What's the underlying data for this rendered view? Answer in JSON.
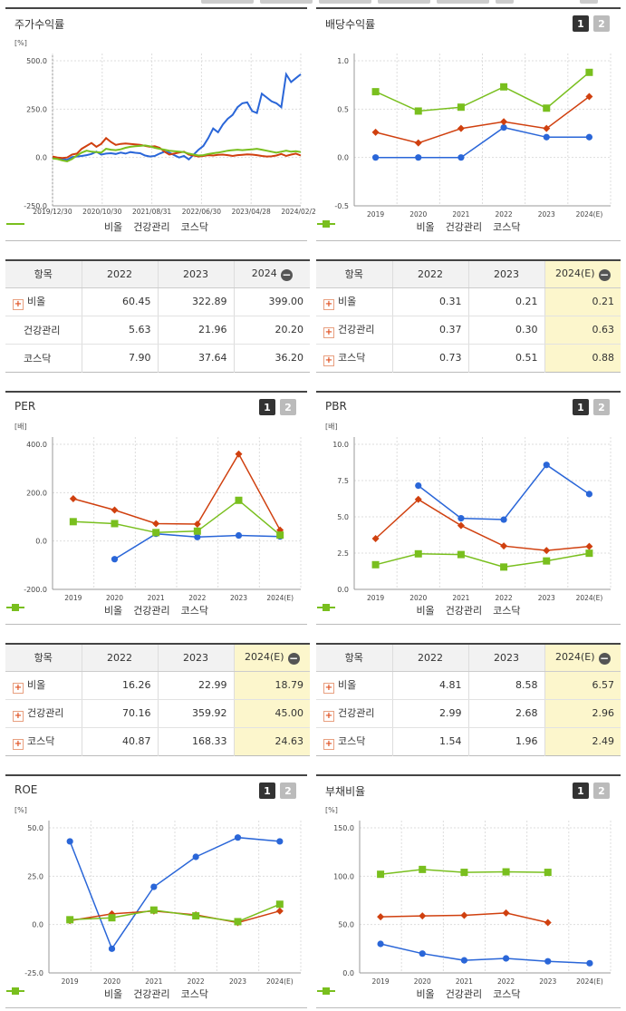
{
  "colors": {
    "series1": "#2a66d8",
    "series2": "#d0400f",
    "series3": "#79bf1e",
    "grid": "#dddddd",
    "axis": "#999999"
  },
  "legend": [
    "비올",
    "건강관리",
    "코스닥"
  ],
  "panels": {
    "stock_return": {
      "title": "주가수익률",
      "unit": "[%]"
    },
    "dividend": {
      "title": "배당수익률",
      "btn1": "1",
      "btn2": "2"
    },
    "per": {
      "title": "PER",
      "unit": "[배]",
      "btn1": "1",
      "btn2": "2"
    },
    "pbr": {
      "title": "PBR",
      "unit": "[배]",
      "btn1": "1",
      "btn2": "2"
    },
    "roe": {
      "title": "ROE",
      "unit": "[%]",
      "btn1": "1",
      "btn2": "2"
    },
    "debt": {
      "title": "부채비율",
      "unit": "[%]",
      "btn1": "1",
      "btn2": "2"
    }
  },
  "tables": {
    "stock_return": {
      "headers": [
        "항목",
        "2022",
        "2023",
        "2024"
      ],
      "rows": [
        [
          "비올",
          "60.45",
          "322.89",
          "399.00"
        ],
        [
          "건강관리",
          "5.63",
          "21.96",
          "20.20"
        ],
        [
          "코스닥",
          "7.90",
          "37.64",
          "36.20"
        ]
      ]
    },
    "dividend": {
      "headers": [
        "항목",
        "2022",
        "2023",
        "2024(E)"
      ],
      "rows": [
        [
          "비올",
          "0.31",
          "0.21",
          "0.21"
        ],
        [
          "건강관리",
          "0.37",
          "0.30",
          "0.63"
        ],
        [
          "코스닥",
          "0.73",
          "0.51",
          "0.88"
        ]
      ]
    },
    "per": {
      "headers": [
        "항목",
        "2022",
        "2023",
        "2024(E)"
      ],
      "rows": [
        [
          "비올",
          "16.26",
          "22.99",
          "18.79"
        ],
        [
          "건강관리",
          "70.16",
          "359.92",
          "45.00"
        ],
        [
          "코스닥",
          "40.87",
          "168.33",
          "24.63"
        ]
      ]
    },
    "pbr": {
      "headers": [
        "항목",
        "2022",
        "2023",
        "2024(E)"
      ],
      "rows": [
        [
          "비올",
          "4.81",
          "8.58",
          "6.57"
        ],
        [
          "건강관리",
          "2.99",
          "2.68",
          "2.96"
        ],
        [
          "코스닥",
          "1.54",
          "1.96",
          "2.49"
        ]
      ]
    }
  },
  "chart_data": [
    {
      "id": "stock_return",
      "type": "line",
      "title": "주가수익률",
      "ylabel": "[%]",
      "ylim": [
        -250,
        500
      ],
      "yticks": [
        "500.0",
        "250.0",
        "0.0",
        "-250.0"
      ],
      "xticks": [
        "2019/12/30",
        "2020/10/30",
        "2021/08/31",
        "2022/06/30",
        "2023/04/28",
        "2024/02/29"
      ],
      "series": [
        {
          "name": "비올",
          "values": [
            0,
            -5,
            -8,
            -12,
            2,
            5,
            8,
            12,
            18,
            30,
            15,
            20,
            22,
            18,
            25,
            20,
            28,
            24,
            22,
            10,
            5,
            8,
            20,
            30,
            25,
            12,
            0,
            8,
            -10,
            15,
            40,
            60,
            100,
            150,
            130,
            170,
            200,
            220,
            260,
            280,
            285,
            240,
            230,
            330,
            310,
            290,
            280,
            260,
            430,
            390,
            410,
            430
          ]
        },
        {
          "name": "건강관리",
          "values": [
            5,
            0,
            -3,
            0,
            15,
            20,
            45,
            60,
            75,
            55,
            70,
            100,
            80,
            65,
            70,
            72,
            70,
            68,
            65,
            60,
            55,
            58,
            50,
            30,
            15,
            20,
            25,
            30,
            15,
            10,
            5,
            8,
            12,
            10,
            14,
            15,
            12,
            8,
            12,
            14,
            16,
            15,
            12,
            8,
            5,
            6,
            10,
            18,
            8,
            15,
            20,
            10
          ]
        },
        {
          "name": "코스닥",
          "values": [
            -5,
            -8,
            -15,
            -20,
            -8,
            10,
            25,
            35,
            30,
            28,
            25,
            45,
            40,
            38,
            42,
            50,
            55,
            58,
            60,
            62,
            58,
            50,
            45,
            40,
            35,
            32,
            30,
            28,
            20,
            15,
            10,
            12,
            18,
            22,
            25,
            30,
            35,
            38,
            40,
            38,
            40,
            42,
            45,
            40,
            35,
            30,
            25,
            30,
            35,
            30,
            32,
            28
          ]
        }
      ]
    },
    {
      "id": "dividend",
      "type": "line",
      "title": "배당수익률",
      "ylim": [
        -0.5,
        1.0
      ],
      "yticks": [
        "1.0",
        "0.5",
        "0.0",
        "-0.5"
      ],
      "categories": [
        "2019",
        "2020",
        "2021",
        "2022",
        "2023",
        "2024(E)"
      ],
      "series": [
        {
          "name": "비올",
          "values": [
            0,
            0,
            0,
            0.31,
            0.21,
            0.21
          ]
        },
        {
          "name": "건강관리",
          "values": [
            0.26,
            0.15,
            0.3,
            0.37,
            0.3,
            0.63
          ]
        },
        {
          "name": "코스닥",
          "values": [
            0.68,
            0.48,
            0.52,
            0.73,
            0.51,
            0.88
          ]
        }
      ]
    },
    {
      "id": "per",
      "type": "line",
      "title": "PER",
      "ylabel": "[배]",
      "ylim": [
        -200,
        400
      ],
      "yticks": [
        "400.0",
        "200.0",
        "0.0",
        "-200.0"
      ],
      "categories": [
        "2019",
        "2020",
        "2021",
        "2022",
        "2023",
        "2024(E)"
      ],
      "series": [
        {
          "name": "비올",
          "values": [
            null,
            -75,
            30,
            16.26,
            22.99,
            18.79
          ]
        },
        {
          "name": "건강관리",
          "values": [
            175,
            128,
            72,
            70.16,
            359.92,
            45
          ]
        },
        {
          "name": "코스닥",
          "values": [
            80,
            72,
            35,
            40.87,
            168.33,
            24.63
          ]
        }
      ]
    },
    {
      "id": "pbr",
      "type": "line",
      "title": "PBR",
      "ylabel": "[배]",
      "ylim": [
        0,
        10
      ],
      "yticks": [
        "10.0",
        "7.5",
        "5.0",
        "2.5",
        "0.0"
      ],
      "categories": [
        "2019",
        "2020",
        "2021",
        "2022",
        "2023",
        "2024(E)"
      ],
      "series": [
        {
          "name": "비올",
          "values": [
            null,
            7.15,
            4.9,
            4.81,
            8.58,
            6.57
          ]
        },
        {
          "name": "건강관리",
          "values": [
            3.5,
            6.2,
            4.4,
            2.99,
            2.68,
            2.96
          ]
        },
        {
          "name": "코스닥",
          "values": [
            1.7,
            2.45,
            2.4,
            1.54,
            1.96,
            2.49
          ]
        }
      ]
    },
    {
      "id": "roe",
      "type": "line",
      "title": "ROE",
      "ylabel": "[%]",
      "ylim": [
        -25,
        50
      ],
      "yticks": [
        "50.0",
        "25.0",
        "0.0",
        "-25.0"
      ],
      "categories": [
        "2019",
        "2020",
        "2021",
        "2022",
        "2023",
        "2024(E)"
      ],
      "series": [
        {
          "name": "비올",
          "values": [
            43,
            -12.5,
            19.5,
            35,
            45,
            43
          ]
        },
        {
          "name": "건강관리",
          "values": [
            2,
            5.5,
            7,
            5,
            1,
            7
          ]
        },
        {
          "name": "코스닥",
          "values": [
            2.5,
            3.5,
            7.5,
            4.5,
            1.5,
            10.5
          ]
        }
      ]
    },
    {
      "id": "debt",
      "type": "line",
      "title": "부채비율",
      "ylabel": "[%]",
      "ylim": [
        0,
        150
      ],
      "yticks": [
        "150.0",
        "100.0",
        "50.0",
        "0.0"
      ],
      "categories": [
        "2019",
        "2020",
        "2021",
        "2022",
        "2023",
        "2024(E)"
      ],
      "series": [
        {
          "name": "비올",
          "values": [
            30,
            20,
            13,
            15,
            12,
            10
          ]
        },
        {
          "name": "건강관리",
          "values": [
            58,
            59,
            59.5,
            62,
            52,
            null
          ]
        },
        {
          "name": "코스닥",
          "values": [
            102,
            107,
            104,
            104.5,
            104,
            null
          ]
        }
      ]
    }
  ]
}
